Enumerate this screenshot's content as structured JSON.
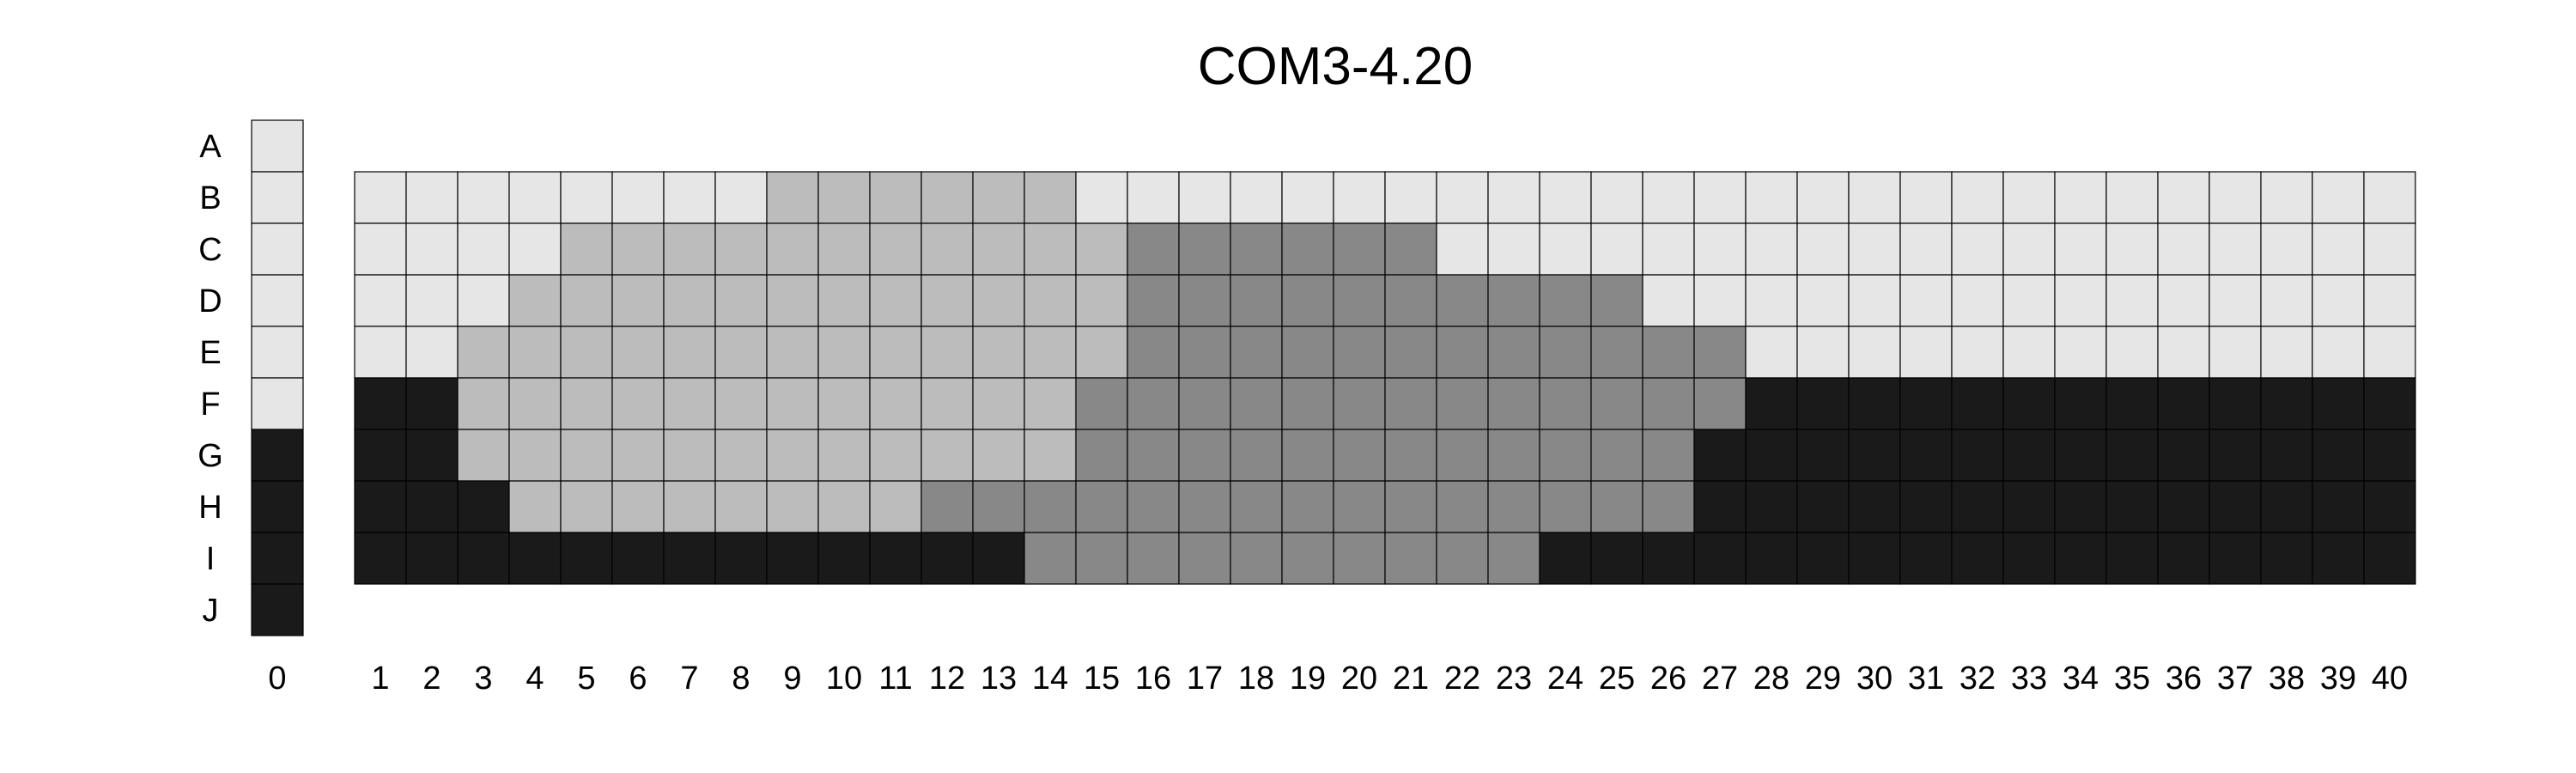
{
  "chart_data": {
    "type": "heatmap",
    "title": "COM3-4.20",
    "rows": [
      "A",
      "B",
      "C",
      "D",
      "E",
      "F",
      "G",
      "H",
      "I",
      "J"
    ],
    "columns": [
      "0",
      "1",
      "2",
      "3",
      "4",
      "5",
      "6",
      "7",
      "8",
      "9",
      "10",
      "11",
      "12",
      "13",
      "14",
      "15",
      "16",
      "17",
      "18",
      "19",
      "20",
      "21",
      "22",
      "23",
      "24",
      "25",
      "26",
      "27",
      "28",
      "29",
      "30",
      "31",
      "32",
      "33",
      "34",
      "35",
      "36",
      "37",
      "38",
      "39",
      "40"
    ],
    "levels": {
      "0": "#e6e6e6",
      "1": "#bcbcbc",
      "2": "#888888",
      "3": "#1a1a1a"
    },
    "reference_column": {
      "column": "0",
      "rows": [
        "A",
        "B",
        "C",
        "D",
        "E",
        "F",
        "G",
        "H",
        "I",
        "J"
      ],
      "values": [
        0,
        0,
        0,
        0,
        0,
        0,
        3,
        3,
        3,
        3
      ]
    },
    "grid": {
      "columns": [
        "1",
        "2",
        "3",
        "4",
        "5",
        "6",
        "7",
        "8",
        "9",
        "10",
        "11",
        "12",
        "13",
        "14",
        "15",
        "16",
        "17",
        "18",
        "19",
        "20",
        "21",
        "22",
        "23",
        "24",
        "25",
        "26",
        "27",
        "28",
        "29",
        "30",
        "31",
        "32",
        "33",
        "34",
        "35",
        "36",
        "37",
        "38",
        "39",
        "40"
      ],
      "rows": [
        "B",
        "C",
        "D",
        "E",
        "F",
        "G",
        "H",
        "I"
      ],
      "values": [
        [
          0,
          0,
          0,
          0,
          0,
          0,
          0,
          0,
          1,
          1,
          1,
          1,
          1,
          1,
          0,
          0,
          0,
          0,
          0,
          0,
          0,
          0,
          0,
          0,
          0,
          0,
          0,
          0,
          0,
          0,
          0,
          0,
          0,
          0,
          0,
          0,
          0,
          0,
          0,
          0
        ],
        [
          0,
          0,
          0,
          0,
          1,
          1,
          1,
          1,
          1,
          1,
          1,
          1,
          1,
          1,
          1,
          2,
          2,
          2,
          2,
          2,
          2,
          0,
          0,
          0,
          0,
          0,
          0,
          0,
          0,
          0,
          0,
          0,
          0,
          0,
          0,
          0,
          0,
          0,
          0,
          0
        ],
        [
          0,
          0,
          0,
          1,
          1,
          1,
          1,
          1,
          1,
          1,
          1,
          1,
          1,
          1,
          1,
          2,
          2,
          2,
          2,
          2,
          2,
          2,
          2,
          2,
          2,
          0,
          0,
          0,
          0,
          0,
          0,
          0,
          0,
          0,
          0,
          0,
          0,
          0,
          0,
          0
        ],
        [
          0,
          0,
          1,
          1,
          1,
          1,
          1,
          1,
          1,
          1,
          1,
          1,
          1,
          1,
          1,
          2,
          2,
          2,
          2,
          2,
          2,
          2,
          2,
          2,
          2,
          2,
          2,
          0,
          0,
          0,
          0,
          0,
          0,
          0,
          0,
          0,
          0,
          0,
          0,
          0
        ],
        [
          3,
          3,
          1,
          1,
          1,
          1,
          1,
          1,
          1,
          1,
          1,
          1,
          1,
          1,
          2,
          2,
          2,
          2,
          2,
          2,
          2,
          2,
          2,
          2,
          2,
          2,
          2,
          3,
          3,
          3,
          3,
          3,
          3,
          3,
          3,
          3,
          3,
          3,
          3,
          3
        ],
        [
          3,
          3,
          1,
          1,
          1,
          1,
          1,
          1,
          1,
          1,
          1,
          1,
          1,
          1,
          2,
          2,
          2,
          2,
          2,
          2,
          2,
          2,
          2,
          2,
          2,
          2,
          3,
          3,
          3,
          3,
          3,
          3,
          3,
          3,
          3,
          3,
          3,
          3,
          3,
          3
        ],
        [
          3,
          3,
          3,
          1,
          1,
          1,
          1,
          1,
          1,
          1,
          1,
          2,
          2,
          2,
          2,
          2,
          2,
          2,
          2,
          2,
          2,
          2,
          2,
          2,
          2,
          2,
          3,
          3,
          3,
          3,
          3,
          3,
          3,
          3,
          3,
          3,
          3,
          3,
          3,
          3
        ],
        [
          3,
          3,
          3,
          3,
          3,
          3,
          3,
          3,
          3,
          3,
          3,
          3,
          3,
          2,
          2,
          2,
          2,
          2,
          2,
          2,
          2,
          2,
          2,
          3,
          3,
          3,
          3,
          3,
          3,
          3,
          3,
          3,
          3,
          3,
          3,
          3,
          3,
          3,
          3,
          3
        ]
      ]
    }
  }
}
